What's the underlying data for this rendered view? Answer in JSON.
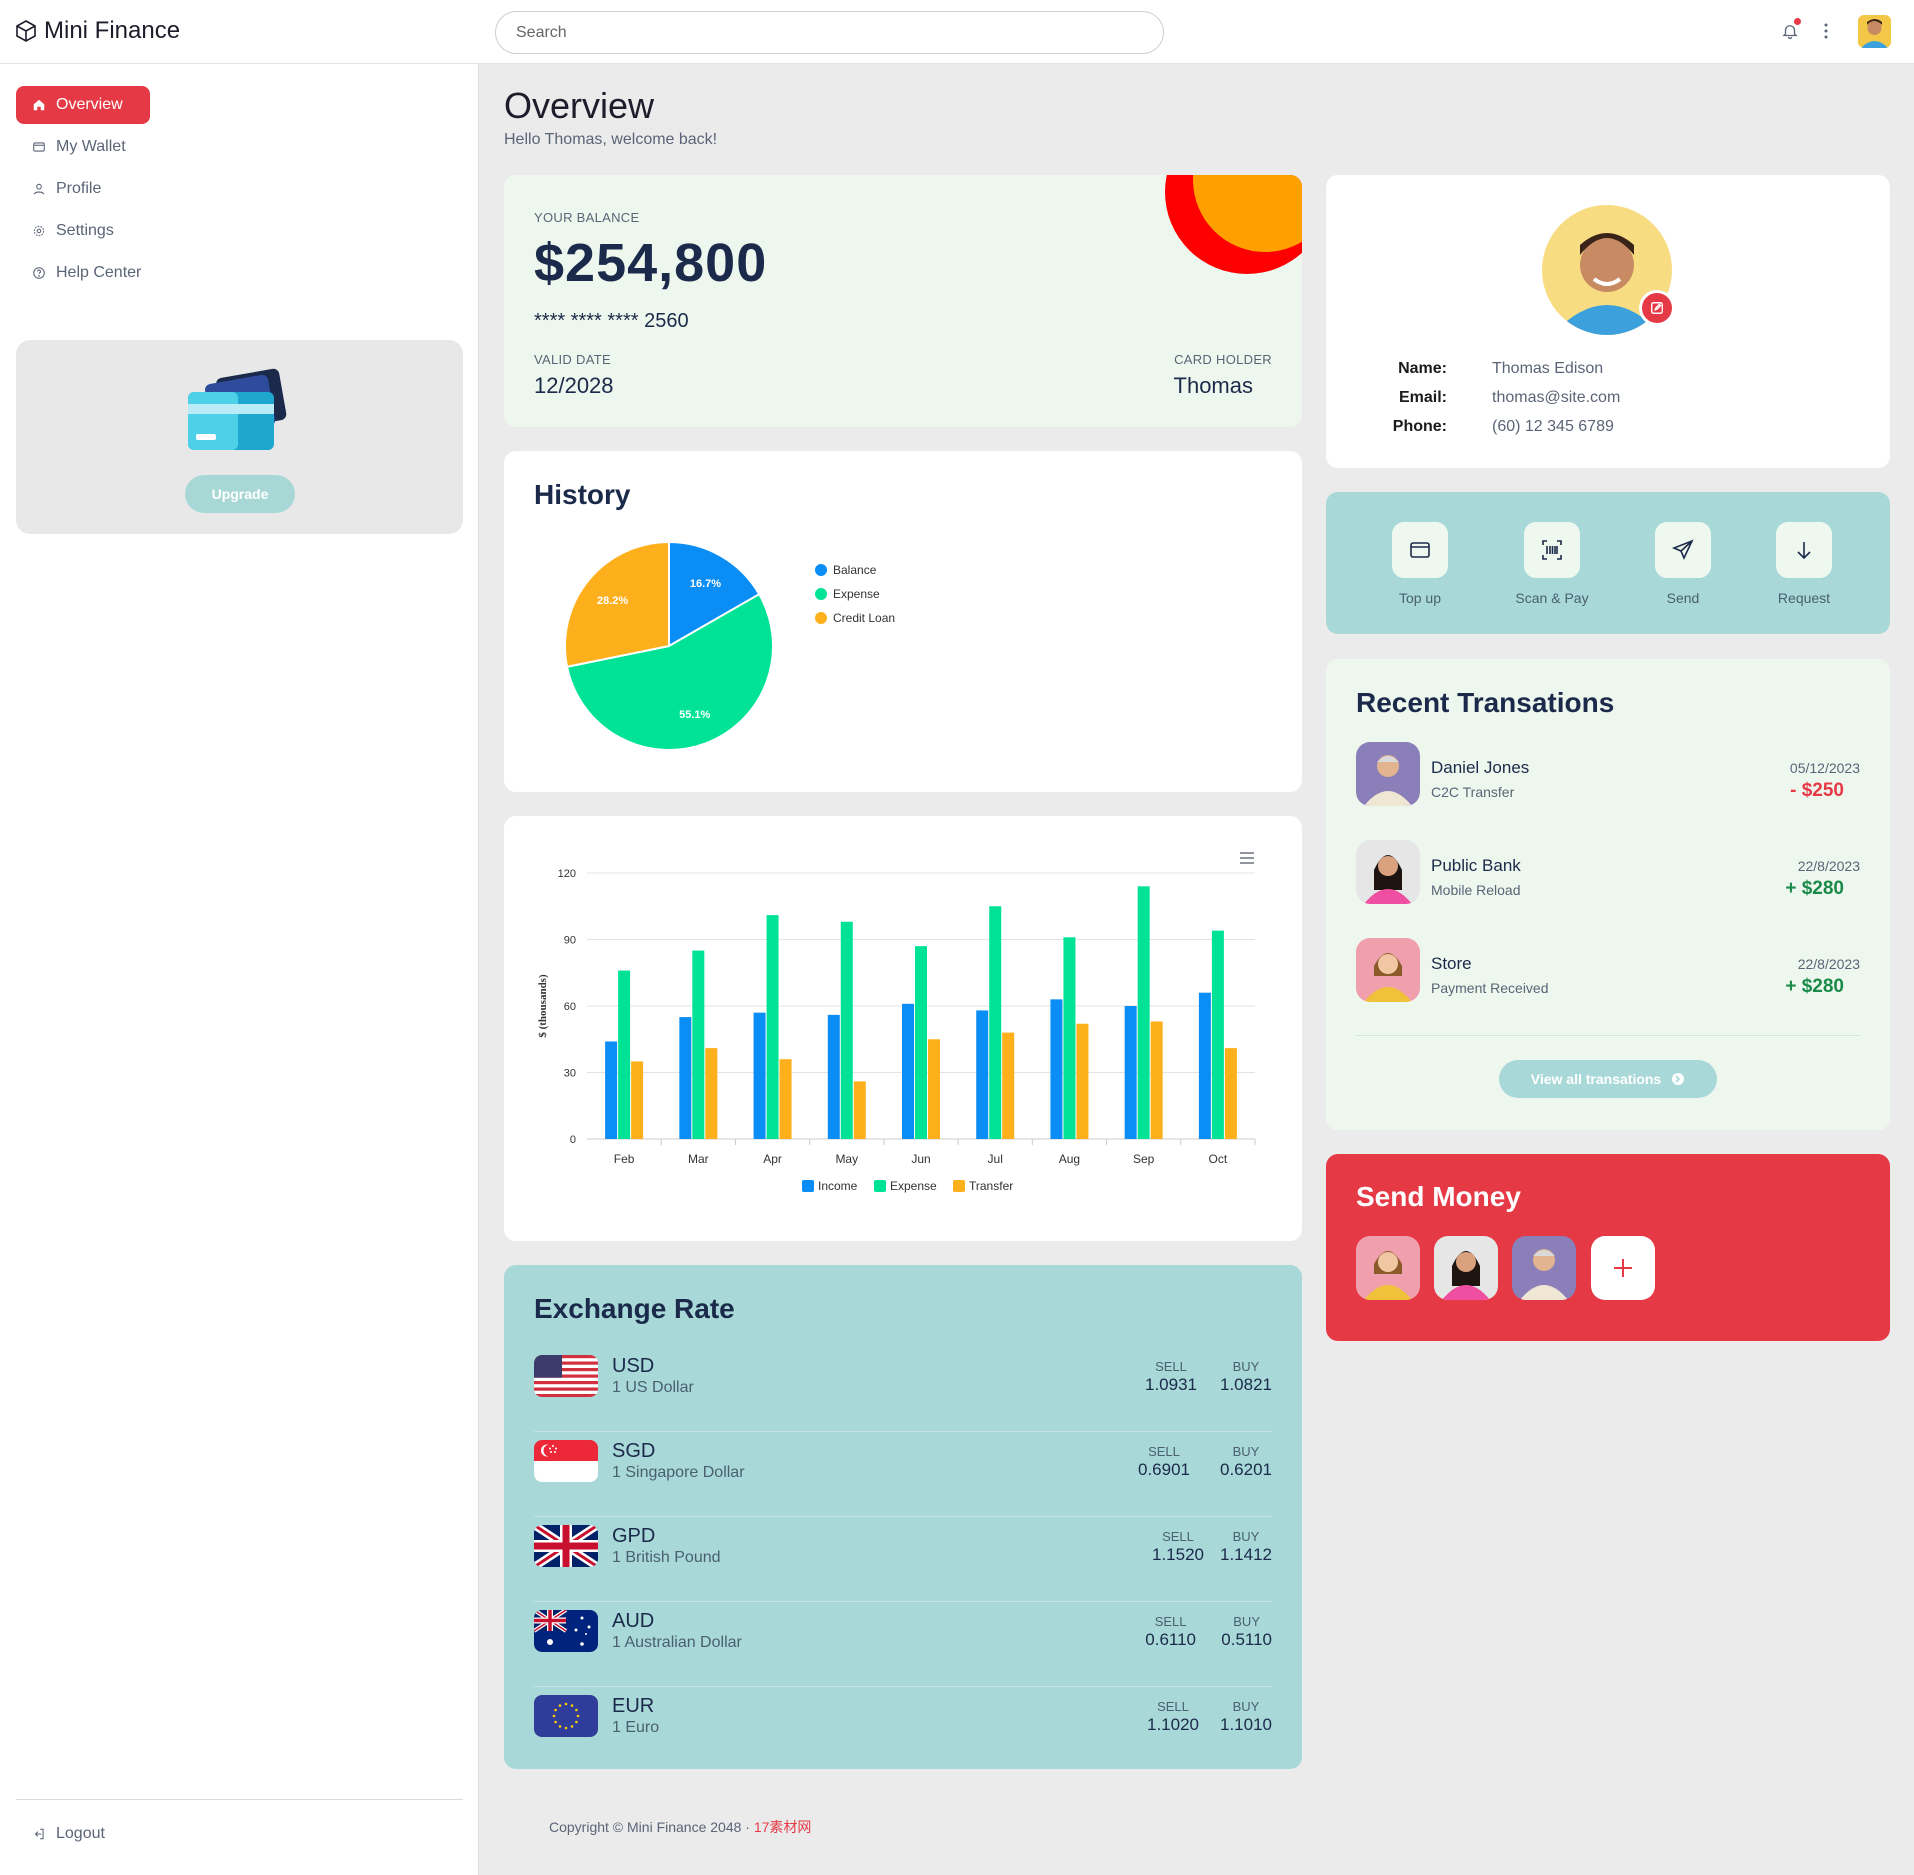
{
  "app": {
    "brand": "Mini Finance",
    "search_placeholder": "Search"
  },
  "sidebar": {
    "items": [
      {
        "label": "Overview",
        "icon": "home-icon",
        "active": true
      },
      {
        "label": "My Wallet",
        "icon": "wallet-icon",
        "active": false
      },
      {
        "label": "Profile",
        "icon": "user-icon",
        "active": false
      },
      {
        "label": "Settings",
        "icon": "gear-icon",
        "active": false
      },
      {
        "label": "Help Center",
        "icon": "help-icon",
        "active": false
      }
    ],
    "upgrade_label": "Upgrade",
    "logout_label": "Logout"
  },
  "page": {
    "title": "Overview",
    "subtitle": "Hello Thomas, welcome back!"
  },
  "balance": {
    "label": "YOUR BALANCE",
    "amount": "$254,800",
    "card_number": "****  ****  ****  2560",
    "valid_label": "VALID DATE",
    "valid_value": "12/2028",
    "holder_label": "CARD HOLDER",
    "holder_value": "Thomas"
  },
  "history": {
    "title": "History"
  },
  "profile": {
    "name_label": "Name:",
    "name": "Thomas Edison",
    "email_label": "Email:",
    "email": "thomas@site.com",
    "phone_label": "Phone:",
    "phone": "(60) 12 345 6789"
  },
  "actions": [
    {
      "label": "Top up",
      "icon": "wallet-icon"
    },
    {
      "label": "Scan & Pay",
      "icon": "barcode-scan-icon"
    },
    {
      "label": "Send",
      "icon": "send-icon"
    },
    {
      "label": "Request",
      "icon": "arrow-down-icon"
    }
  ],
  "recent": {
    "title": "Recent Transations",
    "view_all": "View all transations",
    "items": [
      {
        "name": "Daniel Jones",
        "desc": "C2C Transfer",
        "date": "05/12/2023",
        "amount": "- $250",
        "type": "debit"
      },
      {
        "name": "Public Bank",
        "desc": "Mobile Reload",
        "date": "22/8/2023",
        "amount": "+ $280",
        "type": "credit"
      },
      {
        "name": "Store",
        "desc": "Payment Received",
        "date": "22/8/2023",
        "amount": "+ $280",
        "type": "credit"
      }
    ]
  },
  "send_money": {
    "title": "Send Money",
    "add_icon": "plus-icon"
  },
  "exchange": {
    "title": "Exchange Rate",
    "sell_label": "SELL",
    "buy_label": "BUY",
    "rates": [
      {
        "code": "USD",
        "name": "1 US Dollar",
        "sell": "1.0931",
        "buy": "1.0821",
        "flag": "us-flag-icon"
      },
      {
        "code": "SGD",
        "name": "1 Singapore Dollar",
        "sell": "0.6901",
        "buy": "0.6201",
        "flag": "sg-flag-icon"
      },
      {
        "code": "GPD",
        "name": "1 British Pound",
        "sell": "1.1520",
        "buy": "1.1412",
        "flag": "gb-flag-icon"
      },
      {
        "code": "AUD",
        "name": "1 Australian Dollar",
        "sell": "0.6110",
        "buy": "0.5110",
        "flag": "au-flag-icon"
      },
      {
        "code": "EUR",
        "name": "1 Euro",
        "sell": "1.1020",
        "buy": "1.1010",
        "flag": "eu-flag-icon"
      }
    ]
  },
  "footer": {
    "text": "Copyright © Mini Finance 2048 · ",
    "link": "17素材网"
  },
  "colors": {
    "accent": "#e63946",
    "teal": "#a8d8d8",
    "navy": "#1b2a4a",
    "mint": "#eef7ee"
  },
  "chart_data": [
    {
      "type": "pie",
      "categories": [
        "Balance",
        "Expense",
        "Credit Loan"
      ],
      "values": [
        16.7,
        55.1,
        28.2
      ],
      "colors": [
        "#0a8df5",
        "#00e396",
        "#fdb01c"
      ],
      "legend": "right"
    },
    {
      "type": "bar",
      "categories": [
        "Feb",
        "Mar",
        "Apr",
        "May",
        "Jun",
        "Jul",
        "Aug",
        "Sep",
        "Oct"
      ],
      "series": [
        {
          "name": "Income",
          "values": [
            44,
            55,
            57,
            56,
            61,
            58,
            63,
            60,
            66
          ],
          "color": "#0a8df5"
        },
        {
          "name": "Expense",
          "values": [
            76,
            85,
            101,
            98,
            87,
            105,
            91,
            114,
            94
          ],
          "color": "#00e396"
        },
        {
          "name": "Transfer",
          "values": [
            35,
            41,
            36,
            26,
            45,
            48,
            52,
            53,
            41
          ],
          "color": "#fdb01c"
        }
      ],
      "ylabel": "$ (thousands)",
      "yticks": [
        0,
        30,
        60,
        90,
        120
      ],
      "ylim": [
        0,
        120
      ],
      "grid": true,
      "legend": "bottom"
    }
  ]
}
